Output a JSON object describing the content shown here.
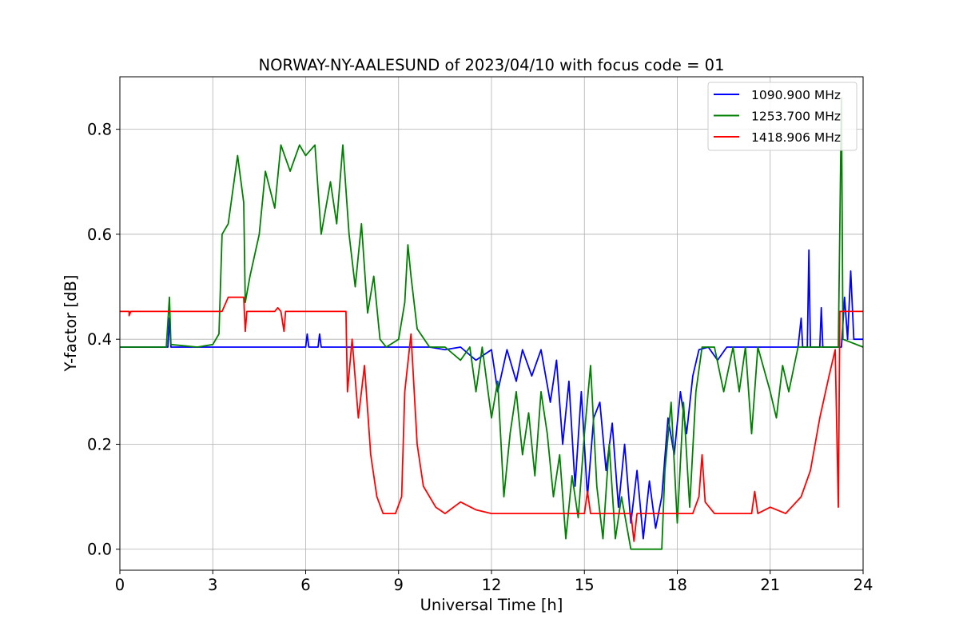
{
  "chart_data": {
    "type": "line",
    "title": "NORWAY-NY-AALESUND of 2023/04/10 with focus code = 01",
    "xlabel": "Universal Time [h]",
    "ylabel": "Y-factor [dB]",
    "xlim": [
      0,
      24
    ],
    "ylim": [
      -0.04,
      0.9
    ],
    "xticks": [
      0,
      3,
      6,
      9,
      12,
      15,
      18,
      21,
      24
    ],
    "xtick_labels": [
      "0",
      "3",
      "6",
      "9",
      "12",
      "15",
      "18",
      "21",
      "24"
    ],
    "yticks": [
      0.0,
      0.2,
      0.4,
      0.6,
      0.8
    ],
    "ytick_labels": [
      "0.0",
      "0.2",
      "0.4",
      "0.6",
      "0.8"
    ],
    "grid": true,
    "legend_position": "top-right",
    "series": [
      {
        "name": "1090.900 MHz",
        "color": "#0000ff",
        "points": [
          [
            0,
            0.385
          ],
          [
            1.55,
            0.385
          ],
          [
            1.6,
            0.44
          ],
          [
            1.65,
            0.385
          ],
          [
            3.5,
            0.385
          ],
          [
            6.0,
            0.385
          ],
          [
            6.05,
            0.41
          ],
          [
            6.1,
            0.385
          ],
          [
            6.4,
            0.385
          ],
          [
            6.45,
            0.41
          ],
          [
            6.5,
            0.385
          ],
          [
            10.0,
            0.385
          ],
          [
            10.5,
            0.38
          ],
          [
            11.0,
            0.385
          ],
          [
            11.5,
            0.36
          ],
          [
            12.0,
            0.38
          ],
          [
            12.2,
            0.3
          ],
          [
            12.5,
            0.38
          ],
          [
            12.8,
            0.32
          ],
          [
            13.0,
            0.38
          ],
          [
            13.3,
            0.33
          ],
          [
            13.6,
            0.38
          ],
          [
            13.9,
            0.28
          ],
          [
            14.1,
            0.36
          ],
          [
            14.3,
            0.2
          ],
          [
            14.5,
            0.32
          ],
          [
            14.7,
            0.12
          ],
          [
            14.9,
            0.3
          ],
          [
            15.1,
            0.1
          ],
          [
            15.3,
            0.25
          ],
          [
            15.5,
            0.28
          ],
          [
            15.7,
            0.15
          ],
          [
            15.9,
            0.24
          ],
          [
            16.1,
            0.08
          ],
          [
            16.3,
            0.2
          ],
          [
            16.5,
            0.05
          ],
          [
            16.7,
            0.15
          ],
          [
            16.9,
            0.02
          ],
          [
            17.1,
            0.13
          ],
          [
            17.3,
            0.04
          ],
          [
            17.5,
            0.1
          ],
          [
            17.7,
            0.25
          ],
          [
            17.9,
            0.18
          ],
          [
            18.1,
            0.3
          ],
          [
            18.3,
            0.22
          ],
          [
            18.5,
            0.33
          ],
          [
            18.7,
            0.38
          ],
          [
            19.0,
            0.385
          ],
          [
            19.3,
            0.36
          ],
          [
            19.6,
            0.385
          ],
          [
            20.0,
            0.385
          ],
          [
            21.0,
            0.385
          ],
          [
            21.9,
            0.385
          ],
          [
            22.0,
            0.44
          ],
          [
            22.05,
            0.385
          ],
          [
            22.2,
            0.385
          ],
          [
            22.25,
            0.57
          ],
          [
            22.3,
            0.385
          ],
          [
            22.6,
            0.385
          ],
          [
            22.65,
            0.46
          ],
          [
            22.7,
            0.385
          ],
          [
            23.3,
            0.385
          ],
          [
            23.4,
            0.48
          ],
          [
            23.5,
            0.4
          ],
          [
            23.6,
            0.53
          ],
          [
            23.7,
            0.4
          ],
          [
            24.0,
            0.4
          ]
        ]
      },
      {
        "name": "1253.700 MHz",
        "color": "#008000",
        "points": [
          [
            0,
            0.385
          ],
          [
            1.5,
            0.385
          ],
          [
            1.6,
            0.48
          ],
          [
            1.65,
            0.39
          ],
          [
            2.5,
            0.385
          ],
          [
            3.0,
            0.39
          ],
          [
            3.2,
            0.41
          ],
          [
            3.3,
            0.6
          ],
          [
            3.5,
            0.62
          ],
          [
            3.8,
            0.75
          ],
          [
            4.0,
            0.66
          ],
          [
            4.05,
            0.47
          ],
          [
            4.2,
            0.52
          ],
          [
            4.5,
            0.6
          ],
          [
            4.7,
            0.72
          ],
          [
            5.0,
            0.65
          ],
          [
            5.2,
            0.77
          ],
          [
            5.5,
            0.72
          ],
          [
            5.8,
            0.77
          ],
          [
            6.0,
            0.75
          ],
          [
            6.3,
            0.77
          ],
          [
            6.5,
            0.6
          ],
          [
            6.8,
            0.7
          ],
          [
            7.0,
            0.62
          ],
          [
            7.2,
            0.77
          ],
          [
            7.4,
            0.6
          ],
          [
            7.6,
            0.5
          ],
          [
            7.8,
            0.62
          ],
          [
            8.0,
            0.45
          ],
          [
            8.2,
            0.52
          ],
          [
            8.4,
            0.4
          ],
          [
            8.6,
            0.385
          ],
          [
            9.0,
            0.4
          ],
          [
            9.2,
            0.47
          ],
          [
            9.3,
            0.58
          ],
          [
            9.4,
            0.52
          ],
          [
            9.6,
            0.42
          ],
          [
            10.0,
            0.385
          ],
          [
            10.5,
            0.385
          ],
          [
            11.0,
            0.36
          ],
          [
            11.3,
            0.385
          ],
          [
            11.5,
            0.3
          ],
          [
            11.7,
            0.385
          ],
          [
            12.0,
            0.25
          ],
          [
            12.2,
            0.32
          ],
          [
            12.4,
            0.1
          ],
          [
            12.6,
            0.22
          ],
          [
            12.8,
            0.3
          ],
          [
            13.0,
            0.18
          ],
          [
            13.2,
            0.26
          ],
          [
            13.4,
            0.14
          ],
          [
            13.6,
            0.3
          ],
          [
            13.8,
            0.22
          ],
          [
            14.0,
            0.1
          ],
          [
            14.2,
            0.18
          ],
          [
            14.4,
            0.02
          ],
          [
            14.6,
            0.14
          ],
          [
            14.8,
            0.06
          ],
          [
            15.0,
            0.22
          ],
          [
            15.2,
            0.35
          ],
          [
            15.4,
            0.12
          ],
          [
            15.6,
            0.02
          ],
          [
            15.8,
            0.2
          ],
          [
            16.0,
            0.02
          ],
          [
            16.2,
            0.1
          ],
          [
            16.5,
            0.0
          ],
          [
            17.0,
            0.0
          ],
          [
            17.5,
            0.0
          ],
          [
            17.6,
            0.15
          ],
          [
            17.8,
            0.28
          ],
          [
            18.0,
            0.05
          ],
          [
            18.2,
            0.28
          ],
          [
            18.4,
            0.08
          ],
          [
            18.6,
            0.3
          ],
          [
            18.8,
            0.385
          ],
          [
            19.2,
            0.385
          ],
          [
            19.5,
            0.3
          ],
          [
            19.8,
            0.385
          ],
          [
            20.0,
            0.3
          ],
          [
            20.2,
            0.385
          ],
          [
            20.4,
            0.22
          ],
          [
            20.6,
            0.385
          ],
          [
            21.0,
            0.3
          ],
          [
            21.2,
            0.25
          ],
          [
            21.4,
            0.35
          ],
          [
            21.6,
            0.3
          ],
          [
            21.9,
            0.385
          ],
          [
            22.5,
            0.385
          ],
          [
            23.0,
            0.385
          ],
          [
            23.2,
            0.385
          ],
          [
            23.3,
            0.86
          ],
          [
            23.35,
            0.4
          ],
          [
            24.0,
            0.385
          ]
        ]
      },
      {
        "name": "1418.906 MHz",
        "color": "#ff0000",
        "points": [
          [
            0,
            0.453
          ],
          [
            0.3,
            0.453
          ],
          [
            0.3,
            0.445
          ],
          [
            0.35,
            0.453
          ],
          [
            3.3,
            0.453
          ],
          [
            3.5,
            0.48
          ],
          [
            4.0,
            0.48
          ],
          [
            4.05,
            0.415
          ],
          [
            4.1,
            0.453
          ],
          [
            5.0,
            0.453
          ],
          [
            5.1,
            0.46
          ],
          [
            5.2,
            0.453
          ],
          [
            5.3,
            0.415
          ],
          [
            5.35,
            0.453
          ],
          [
            7.3,
            0.453
          ],
          [
            7.35,
            0.3
          ],
          [
            7.5,
            0.4
          ],
          [
            7.7,
            0.25
          ],
          [
            7.9,
            0.35
          ],
          [
            8.1,
            0.18
          ],
          [
            8.3,
            0.1
          ],
          [
            8.5,
            0.068
          ],
          [
            8.9,
            0.068
          ],
          [
            9.1,
            0.1
          ],
          [
            9.2,
            0.3
          ],
          [
            9.4,
            0.41
          ],
          [
            9.6,
            0.2
          ],
          [
            9.8,
            0.12
          ],
          [
            10.2,
            0.08
          ],
          [
            10.5,
            0.068
          ],
          [
            11.0,
            0.09
          ],
          [
            11.5,
            0.075
          ],
          [
            12.0,
            0.068
          ],
          [
            15.0,
            0.068
          ],
          [
            15.1,
            0.11
          ],
          [
            15.2,
            0.068
          ],
          [
            16.5,
            0.068
          ],
          [
            16.6,
            0.015
          ],
          [
            16.7,
            0.068
          ],
          [
            17.5,
            0.068
          ],
          [
            18.5,
            0.068
          ],
          [
            18.7,
            0.1
          ],
          [
            18.8,
            0.18
          ],
          [
            18.9,
            0.09
          ],
          [
            19.2,
            0.068
          ],
          [
            20.4,
            0.068
          ],
          [
            20.5,
            0.11
          ],
          [
            20.6,
            0.068
          ],
          [
            21.0,
            0.08
          ],
          [
            21.5,
            0.068
          ],
          [
            22.0,
            0.1
          ],
          [
            22.3,
            0.15
          ],
          [
            22.6,
            0.25
          ],
          [
            22.9,
            0.33
          ],
          [
            23.1,
            0.38
          ],
          [
            23.2,
            0.08
          ],
          [
            23.25,
            0.453
          ],
          [
            24.0,
            0.453
          ]
        ]
      }
    ]
  }
}
